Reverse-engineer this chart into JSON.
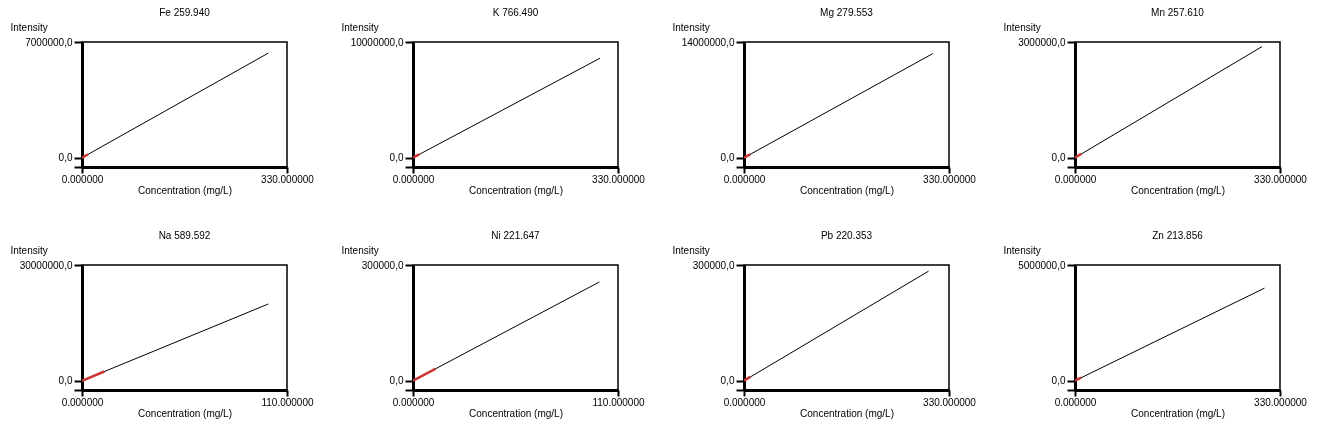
{
  "chart_data": [
    {
      "type": "line",
      "title": "Fe 259.940",
      "xlabel": "Concentration (mg/L)",
      "ylabel": "Intensity",
      "xlim": [
        0,
        330
      ],
      "ylim": [
        -560000,
        7000000
      ],
      "xticks": [
        {
          "value": 0,
          "label": "0.000000"
        },
        {
          "value": 330,
          "label": "330.000000"
        }
      ],
      "yticks": [
        {
          "value": -560000,
          "label": null
        },
        {
          "value": 0,
          "label": "0,0"
        },
        {
          "value": 7000000,
          "label": "7000000,0"
        }
      ],
      "series": [
        {
          "color": "#000000",
          "x": [
            0,
            300
          ],
          "values": [
            0,
            6330000
          ]
        },
        {
          "color": "#cc3333",
          "x": [
            0,
            10
          ],
          "values": [
            0,
            210000
          ]
        }
      ]
    },
    {
      "type": "line",
      "title": "K 766.490",
      "xlabel": "Concentration (mg/L)",
      "ylabel": "Intensity",
      "xlim": [
        0,
        330
      ],
      "ylim": [
        -800000,
        10000000
      ],
      "xticks": [
        {
          "value": 0,
          "label": "0.000000"
        },
        {
          "value": 330,
          "label": "330.000000"
        }
      ],
      "yticks": [
        {
          "value": -800000,
          "label": null
        },
        {
          "value": 0,
          "label": "0,0"
        },
        {
          "value": 10000000,
          "label": "10000000,0"
        }
      ],
      "series": [
        {
          "color": "#000000",
          "x": [
            0,
            301
          ],
          "values": [
            0,
            8600000
          ]
        },
        {
          "color": "#cc3333",
          "x": [
            0,
            10
          ],
          "values": [
            0,
            290000
          ]
        }
      ]
    },
    {
      "type": "line",
      "title": "Mg 279.553",
      "xlabel": "Concentration (mg/L)",
      "ylabel": "Intensity",
      "xlim": [
        0,
        330
      ],
      "ylim": [
        -1120000,
        14000000
      ],
      "xticks": [
        {
          "value": 0,
          "label": "0.000000"
        },
        {
          "value": 330,
          "label": "330.000000"
        }
      ],
      "yticks": [
        {
          "value": -1120000,
          "label": null
        },
        {
          "value": 0,
          "label": "0,0"
        },
        {
          "value": 14000000,
          "label": "14000000,0"
        }
      ],
      "series": [
        {
          "color": "#000000",
          "x": [
            0,
            304
          ],
          "values": [
            0,
            12600000
          ]
        },
        {
          "color": "#cc3333",
          "x": [
            0,
            10
          ],
          "values": [
            0,
            410000
          ]
        }
      ]
    },
    {
      "type": "line",
      "title": "Mn 257.610",
      "xlabel": "Concentration (mg/L)",
      "ylabel": "Intensity",
      "xlim": [
        0,
        330
      ],
      "ylim": [
        -240000,
        3000000
      ],
      "xticks": [
        {
          "value": 0,
          "label": "0.000000"
        },
        {
          "value": 330,
          "label": "330.000000"
        }
      ],
      "yticks": [
        {
          "value": -240000,
          "label": null
        },
        {
          "value": 0,
          "label": "0,0"
        },
        {
          "value": 3000000,
          "label": "3000000,0"
        }
      ],
      "series": [
        {
          "color": "#000000",
          "x": [
            0,
            301
          ],
          "values": [
            0,
            2880000
          ]
        },
        {
          "color": "#cc3333",
          "x": [
            0,
            10
          ],
          "values": [
            0,
            100000
          ]
        }
      ]
    },
    {
      "type": "line",
      "title": "Na 589.592",
      "xlabel": "Concentration (mg/L)",
      "ylabel": "Intensity",
      "xlim": [
        0,
        110
      ],
      "ylim": [
        -2400000,
        30000000
      ],
      "xticks": [
        {
          "value": 0,
          "label": "0.000000"
        },
        {
          "value": 110,
          "label": "110.000000"
        }
      ],
      "yticks": [
        {
          "value": -2400000,
          "label": null
        },
        {
          "value": 0,
          "label": "0,0"
        },
        {
          "value": 30000000,
          "label": "30000000,0"
        }
      ],
      "series": [
        {
          "color": "#000000",
          "x": [
            0,
            100
          ],
          "values": [
            0,
            19900000
          ]
        },
        {
          "color": "#cc3333",
          "x": [
            0,
            12
          ],
          "values": [
            0,
            2400000
          ]
        }
      ]
    },
    {
      "type": "line",
      "title": "Ni 221.647",
      "xlabel": "Concentration (mg/L)",
      "ylabel": "Intensity",
      "xlim": [
        0,
        110
      ],
      "ylim": [
        -24000,
        300000
      ],
      "xticks": [
        {
          "value": 0,
          "label": "0.000000"
        },
        {
          "value": 110,
          "label": "110.000000"
        }
      ],
      "yticks": [
        {
          "value": -24000,
          "label": null
        },
        {
          "value": 0,
          "label": "0,0"
        },
        {
          "value": 300000,
          "label": "300000,0"
        }
      ],
      "series": [
        {
          "color": "#000000",
          "x": [
            0,
            100
          ],
          "values": [
            0,
            256000
          ]
        },
        {
          "color": "#cc3333",
          "x": [
            0,
            12
          ],
          "values": [
            0,
            31000
          ]
        }
      ]
    },
    {
      "type": "line",
      "title": "Pb 220.353",
      "xlabel": "Concentration (mg/L)",
      "ylabel": "Intensity",
      "xlim": [
        0,
        330
      ],
      "ylim": [
        -24000,
        300000
      ],
      "xticks": [
        {
          "value": 0,
          "label": "0.000000"
        },
        {
          "value": 330,
          "label": "330.000000"
        }
      ],
      "yticks": [
        {
          "value": -24000,
          "label": null
        },
        {
          "value": 0,
          "label": "0,0"
        },
        {
          "value": 300000,
          "label": "300000,0"
        }
      ],
      "series": [
        {
          "color": "#000000",
          "x": [
            0,
            297
          ],
          "values": [
            0,
            284000
          ]
        },
        {
          "color": "#cc3333",
          "x": [
            0,
            10
          ],
          "values": [
            0,
            10000
          ]
        }
      ]
    },
    {
      "type": "line",
      "title": "Zn 213.856",
      "xlabel": "Concentration (mg/L)",
      "ylabel": "Intensity",
      "xlim": [
        0,
        330
      ],
      "ylim": [
        -400000,
        5000000
      ],
      "xticks": [
        {
          "value": 0,
          "label": "0.000000"
        },
        {
          "value": 330,
          "label": "330.000000"
        }
      ],
      "yticks": [
        {
          "value": -400000,
          "label": null
        },
        {
          "value": 0,
          "label": "0,0"
        },
        {
          "value": 5000000,
          "label": "5000000,0"
        }
      ],
      "series": [
        {
          "color": "#000000",
          "x": [
            0,
            305
          ],
          "values": [
            0,
            4000000
          ]
        },
        {
          "color": "#cc3333",
          "x": [
            0,
            10
          ],
          "values": [
            0,
            130000
          ]
        }
      ]
    }
  ]
}
